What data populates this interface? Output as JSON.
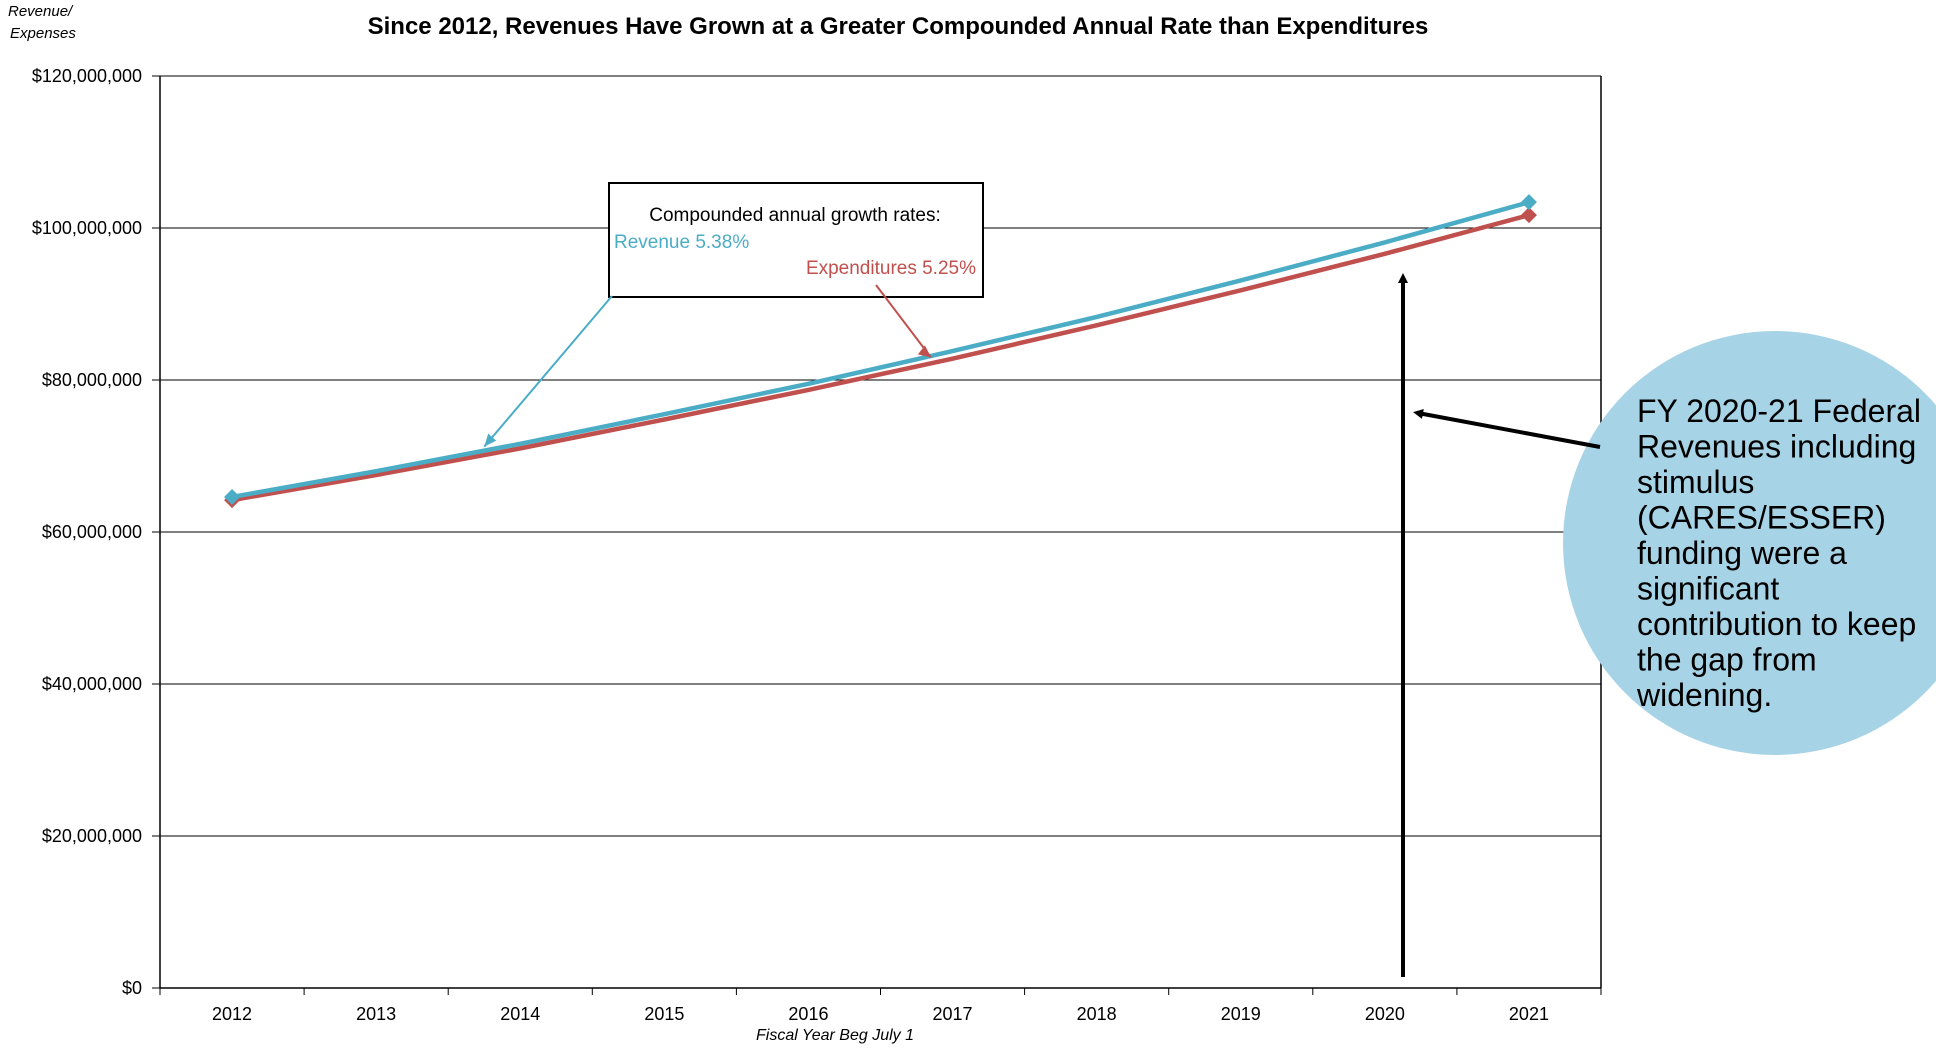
{
  "chart_data": {
    "type": "line",
    "title": "Since 2012, Revenues Have Grown at a Greater Compounded Annual Rate than Expenditures",
    "ylabel": "Revenue/\nExpenses",
    "xlabel": "Fiscal Year Beg July 1",
    "categories": [
      "2012",
      "2013",
      "2014",
      "2015",
      "2016",
      "2017",
      "2018",
      "2019",
      "2020",
      "2021"
    ],
    "ylim": [
      0,
      120000000
    ],
    "yticks": [
      0,
      20000000,
      40000000,
      60000000,
      80000000,
      100000000,
      120000000
    ],
    "ytick_labels": [
      "$0",
      "$20,000,000",
      "$40,000,000",
      "$60,000,000",
      "$80,000,000",
      "$100,000,000",
      "$120,000,000"
    ],
    "grid": true,
    "series": [
      {
        "key": "revenue",
        "color": "#4bacc6",
        "marker": "diamond",
        "values": [
          64600000,
          68000000,
          71600000,
          75500000,
          79500000,
          83800000,
          88300000,
          93100000,
          98100000,
          103400000
        ]
      },
      {
        "key": "expenditures",
        "color": "#c0504d",
        "marker": "diamond",
        "values": [
          64200000,
          67500000,
          71000000,
          74800000,
          78700000,
          82800000,
          87200000,
          91800000,
          96600000,
          101700000
        ]
      }
    ],
    "annotations": {
      "growth_box_title": "Compounded annual growth rates:",
      "revenue_label": "Revenue 5.38%",
      "expenditures_label": "Expenditures 5.25%",
      "callout_lines": [
        "FY 2020-21 Federal",
        "Revenues including",
        "stimulus",
        "(CARES/ESSER)",
        "funding were a",
        "significant",
        "contribution to keep",
        "the gap from",
        "widening."
      ],
      "callout_color": "#a7d3e6"
    }
  }
}
